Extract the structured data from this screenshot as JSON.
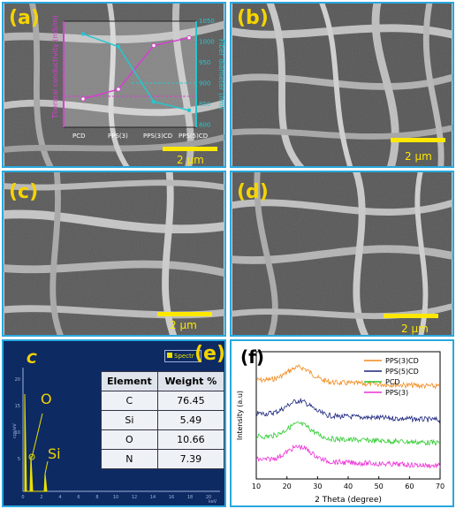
{
  "panels": {
    "a": {
      "label": "(a)",
      "scale": "2 μm"
    },
    "b": {
      "label": "(b)",
      "scale": "2 μm"
    },
    "c": {
      "label": "(c)",
      "scale": "2 μm"
    },
    "d": {
      "label": "(d)",
      "scale": "2 μm"
    },
    "e": {
      "label": "(e)"
    },
    "f": {
      "label": "(f)"
    }
  },
  "inset_chart": {
    "categories": [
      "PCD",
      "PPS(3)",
      "PPS(3)CD",
      "PPS(5)CD"
    ],
    "left_axis_label": "Thermal conductivity (mS/m)",
    "right_axis_label": "Fiber diameter (nm)",
    "right_ticks": [
      "1050",
      "1000",
      "950",
      "900",
      "850",
      "800"
    ],
    "thermal_series": [
      0.2,
      0.3,
      0.75,
      0.83
    ],
    "diameter_series": [
      1020,
      990,
      860,
      840
    ],
    "colors": {
      "thermal": "#d63fd0",
      "diameter": "#25c6cf"
    }
  },
  "edx": {
    "element_label": "C",
    "peak_o": "O",
    "peak_si": "Si",
    "legend": "Spectr",
    "y_axis": "cps/eV",
    "x_axis": "keV",
    "x_ticks": [
      "0",
      "2",
      "4",
      "6",
      "8",
      "10",
      "12",
      "14",
      "16",
      "18",
      "20"
    ],
    "y_ticks": [
      "20",
      "15",
      "10",
      "5"
    ],
    "table": {
      "headers": [
        "Element",
        "Weight %"
      ],
      "rows": [
        {
          "element": "C",
          "weight": "76.45"
        },
        {
          "element": "Si",
          "weight": "5.49"
        },
        {
          "element": "O",
          "weight": "10.66"
        },
        {
          "element": "N",
          "weight": "7.39"
        }
      ]
    }
  },
  "chart_data": {
    "type": "line",
    "xlabel": "2 Theta (degree)",
    "ylabel": "Intensity (a.u)",
    "xlim": [
      10,
      70
    ],
    "x_ticks": [
      "10",
      "20",
      "30",
      "40",
      "50",
      "60",
      "70"
    ],
    "series": [
      {
        "name": "PPS(3)CD",
        "color": "#f08a1c",
        "offset": 3.0
      },
      {
        "name": "PPS(5)CD",
        "color": "#1a237e",
        "offset": 2.0
      },
      {
        "name": "PCD",
        "color": "#2ecc30",
        "offset": 1.0
      },
      {
        "name": "PPS(3)",
        "color": "#ee2fd6",
        "offset": 0.0
      }
    ],
    "peak_center": 24,
    "legend_position": "top-right"
  }
}
